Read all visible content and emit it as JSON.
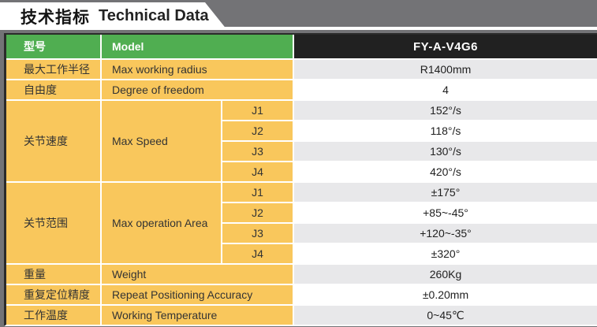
{
  "banner": {
    "title_zh": "技术指标",
    "title_en": "Technical Data"
  },
  "table": {
    "header": {
      "col1": "型号",
      "col2": "Model",
      "value": "FY-A-V4G6"
    },
    "rows": [
      {
        "zh": "最大工作半径",
        "en": "Max working radius",
        "value": "R1400mm"
      },
      {
        "zh": "自由度",
        "en": "Degree of freedom",
        "value": "4"
      },
      {
        "zh": "关节速度",
        "en": "Max Speed",
        "joints": [
          {
            "label": "J1",
            "value": "152°/s"
          },
          {
            "label": "J2",
            "value": "118°/s"
          },
          {
            "label": "J3",
            "value": "130°/s"
          },
          {
            "label": "J4",
            "value": "420°/s"
          }
        ]
      },
      {
        "zh": "关节范围",
        "en": "Max operation Area",
        "joints": [
          {
            "label": "J1",
            "value": "±175°"
          },
          {
            "label": "J2",
            "value": "+85~-45°"
          },
          {
            "label": "J3",
            "value": "+120~-35°"
          },
          {
            "label": "J4",
            "value": "±320°"
          }
        ]
      },
      {
        "zh": "重量",
        "en": "Weight",
        "value": "260Kg"
      },
      {
        "zh": "重复定位精度",
        "en": "Repeat Positioning Accuracy",
        "value": "±0.20mm"
      },
      {
        "zh": "工作温度",
        "en": "Working Temperature",
        "value": "0~45℃"
      }
    ]
  },
  "colors": {
    "bg": "#737376",
    "green": "#50AE51",
    "yellow": "#F9C75C",
    "black-cell": "#212121",
    "value-gray": "#E8E8EA",
    "border-dark": "#2B2B2B"
  }
}
